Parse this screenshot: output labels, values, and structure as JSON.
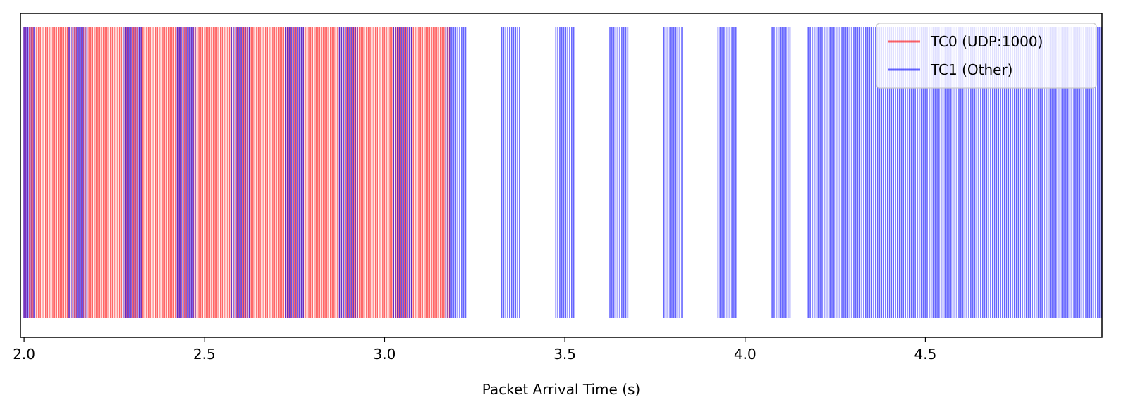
{
  "chart_data": {
    "type": "event-raster",
    "title": "",
    "xlabel": "Packet Arrival Time (s)",
    "ylabel": "",
    "xlim": [
      1.99,
      4.99
    ],
    "xticks": [
      2.0,
      2.5,
      3.0,
      3.5,
      4.0,
      4.5
    ],
    "xtick_labels": [
      "2.0",
      "2.5",
      "3.0",
      "3.5",
      "4.0",
      "4.5"
    ],
    "grid": false,
    "legend_position": "top-right",
    "series": [
      {
        "name": "TC0 (UDP:1000)",
        "color": "#ff0000",
        "opacity": 0.6,
        "bursts": [
          [
            2.0,
            3.18
          ]
        ],
        "spacing_s": 0.005
      },
      {
        "name": "TC1 (Other)",
        "color": "#0000ff",
        "opacity": 0.6,
        "bursts": [
          [
            2.0,
            2.03
          ],
          [
            2.125,
            2.175
          ],
          [
            2.275,
            2.325
          ],
          [
            2.425,
            2.475
          ],
          [
            2.575,
            2.625
          ],
          [
            2.725,
            2.775
          ],
          [
            2.875,
            2.925
          ],
          [
            3.025,
            3.075
          ],
          [
            3.17,
            3.225
          ],
          [
            3.325,
            3.375
          ],
          [
            3.475,
            3.525
          ],
          [
            3.625,
            3.675
          ],
          [
            3.775,
            3.825
          ],
          [
            3.925,
            3.975
          ],
          [
            4.075,
            4.125
          ],
          [
            4.175,
            4.99
          ]
        ],
        "spacing_s": 0.0055
      }
    ]
  }
}
